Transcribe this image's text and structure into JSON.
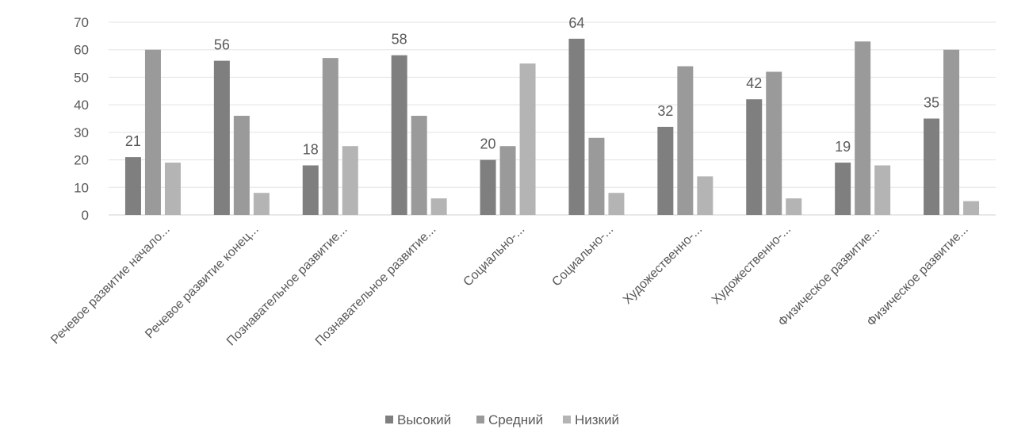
{
  "chart_data": {
    "type": "bar",
    "title": "",
    "xlabel": "",
    "ylabel": "",
    "ylim": [
      0,
      70
    ],
    "yticks": [
      0,
      10,
      20,
      30,
      40,
      50,
      60,
      70
    ],
    "grid": true,
    "legend_position": "bottom",
    "categories": [
      "Речевое развитие начало...",
      "Речевое развитие конец...",
      "Познавательное развитие...",
      "Познавательное развитие...",
      "Социально-...",
      "Социально-...",
      "Художественно-...",
      "Художественно-...",
      "Физическое развитие...",
      "Физическое развитие..."
    ],
    "series": [
      {
        "name": "Высокий",
        "color": "#7f7f7f",
        "values": [
          21,
          56,
          18,
          58,
          20,
          64,
          32,
          42,
          19,
          35
        ]
      },
      {
        "name": "Средний",
        "color": "#9a9a9a",
        "values": [
          60,
          36,
          57,
          36,
          25,
          28,
          54,
          52,
          63,
          60
        ]
      },
      {
        "name": "Низкий",
        "color": "#b4b4b4",
        "values": [
          19,
          8,
          25,
          6,
          55,
          8,
          14,
          6,
          18,
          5
        ]
      }
    ],
    "data_labels": {
      "series_index": 0,
      "values": [
        21,
        56,
        18,
        58,
        20,
        64,
        32,
        42,
        19,
        35
      ]
    }
  }
}
